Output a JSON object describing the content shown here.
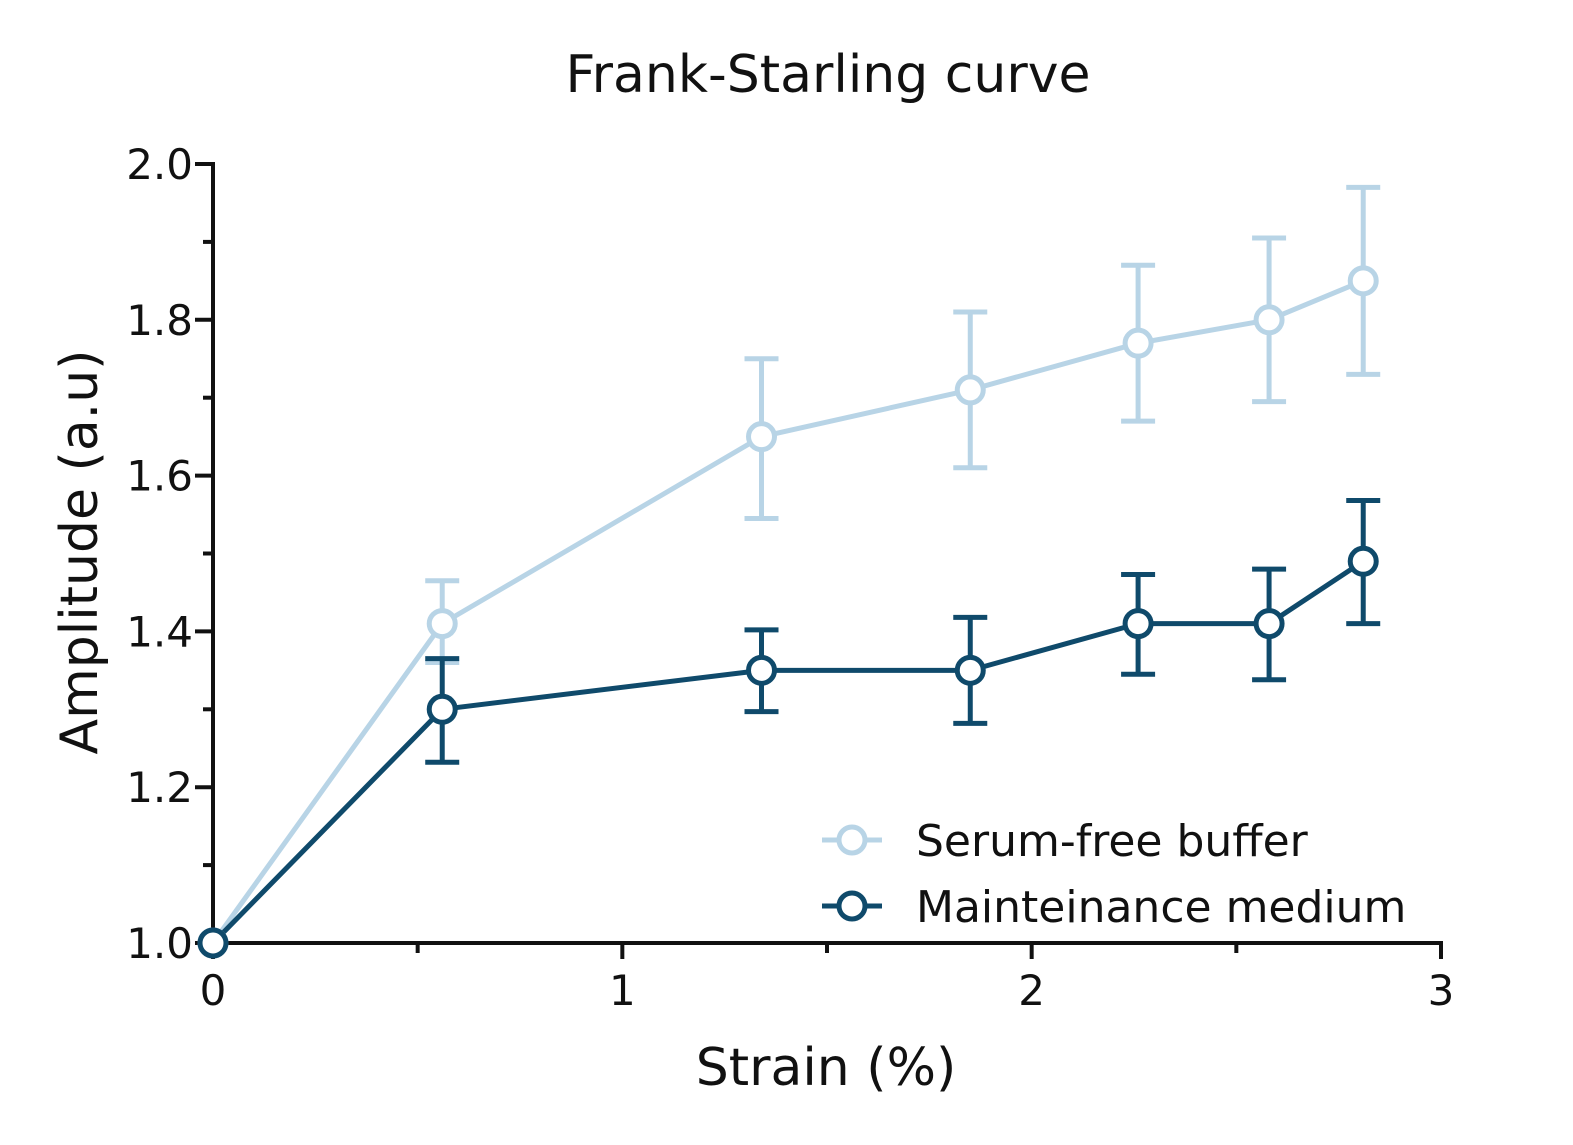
{
  "chart_data": {
    "type": "line",
    "title": "Frank-Starling curve",
    "xlabel": "Strain (%)",
    "ylabel": "Amplitude (a.u)",
    "xlim": [
      0,
      3
    ],
    "ylim": [
      1.0,
      2.0
    ],
    "x_ticks": [
      0,
      1,
      2,
      3
    ],
    "x_tick_labels": [
      "0",
      "1",
      "2",
      "3"
    ],
    "x_minor_ticks": [
      0.5,
      1.5,
      2.5
    ],
    "y_ticks": [
      1.0,
      1.2,
      1.4,
      1.6,
      1.8,
      2.0
    ],
    "y_tick_labels": [
      "1.0",
      "1.2",
      "1.4",
      "1.6",
      "1.8",
      "2.0"
    ],
    "y_minor_ticks": [
      1.1,
      1.3,
      1.5,
      1.7,
      1.9
    ],
    "grid": false,
    "legend_position": "bottom-right",
    "series": [
      {
        "name": "Serum-free buffer",
        "color": "#b8d4e6",
        "marker": "open-circle",
        "points": [
          {
            "x": 0,
            "y": 1.0,
            "err_low": 1.0,
            "err_high": 1.0
          },
          {
            "x": 0.56,
            "y": 1.41,
            "err_low": 1.36,
            "err_high": 1.465
          },
          {
            "x": 1.34,
            "y": 1.65,
            "err_low": 1.545,
            "err_high": 1.75
          },
          {
            "x": 1.85,
            "y": 1.71,
            "err_low": 1.61,
            "err_high": 1.81
          },
          {
            "x": 2.26,
            "y": 1.77,
            "err_low": 1.67,
            "err_high": 1.87
          },
          {
            "x": 2.58,
            "y": 1.8,
            "err_low": 1.695,
            "err_high": 1.905
          },
          {
            "x": 2.81,
            "y": 1.85,
            "err_low": 1.73,
            "err_high": 1.97
          }
        ]
      },
      {
        "name": "Mainteinance medium",
        "color": "#0f4a6b",
        "marker": "open-circle",
        "points": [
          {
            "x": 0,
            "y": 1.0,
            "err_low": 1.0,
            "err_high": 1.0
          },
          {
            "x": 0.56,
            "y": 1.3,
            "err_low": 1.232,
            "err_high": 1.365
          },
          {
            "x": 1.34,
            "y": 1.35,
            "err_low": 1.297,
            "err_high": 1.402
          },
          {
            "x": 1.85,
            "y": 1.35,
            "err_low": 1.282,
            "err_high": 1.418
          },
          {
            "x": 2.26,
            "y": 1.41,
            "err_low": 1.345,
            "err_high": 1.473
          },
          {
            "x": 2.58,
            "y": 1.41,
            "err_low": 1.338,
            "err_high": 1.48
          },
          {
            "x": 2.81,
            "y": 1.49,
            "err_low": 1.41,
            "err_high": 1.568
          }
        ]
      }
    ]
  }
}
